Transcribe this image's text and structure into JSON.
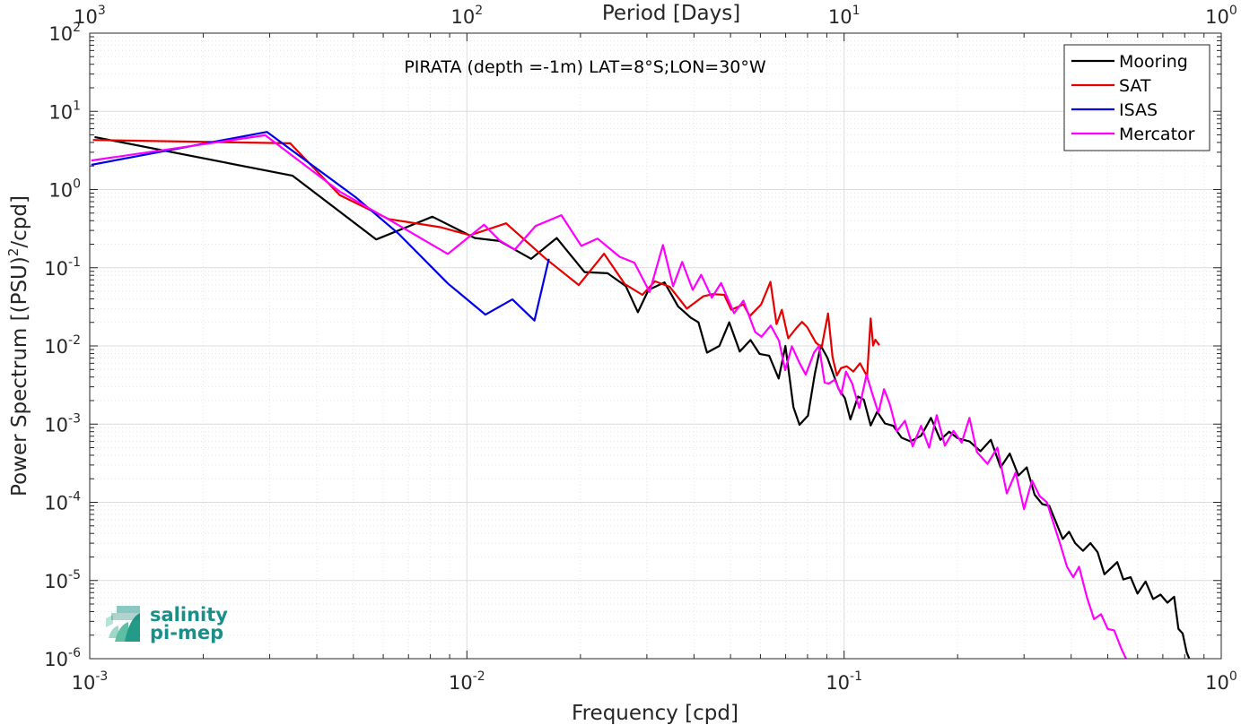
{
  "chart_data": {
    "type": "line",
    "title": "PIRATA (depth =-1m) LAT=8°S;LON=30°W",
    "xlabel": "Frequency [cpd]",
    "ylabel": "Power Spectrum [(PSU)",
    "ylabel_sup": "2",
    "ylabel_tail": "/cpd]",
    "top_xlabel": "Period [Days]",
    "x_scale": "log",
    "y_scale": "log",
    "xlim": [
      0.001,
      1
    ],
    "ylim": [
      1e-06,
      100
    ],
    "x_ticks": [
      {
        "value": 0.001,
        "base": "10",
        "exp": "-3"
      },
      {
        "value": 0.01,
        "base": "10",
        "exp": "-2"
      },
      {
        "value": 0.1,
        "base": "10",
        "exp": "-1"
      },
      {
        "value": 1,
        "base": "10",
        "exp": "0"
      }
    ],
    "top_ticks": [
      {
        "freq": 0.001,
        "base": "10",
        "exp": "3"
      },
      {
        "freq": 0.01,
        "base": "10",
        "exp": "2"
      },
      {
        "freq": 0.1,
        "base": "10",
        "exp": "1"
      },
      {
        "freq": 1,
        "base": "10",
        "exp": "0"
      }
    ],
    "y_ticks": [
      {
        "value": 100,
        "base": "10",
        "exp": "2"
      },
      {
        "value": 10,
        "base": "10",
        "exp": "1"
      },
      {
        "value": 1,
        "base": "10",
        "exp": "0"
      },
      {
        "value": 0.1,
        "base": "10",
        "exp": "-1"
      },
      {
        "value": 0.01,
        "base": "10",
        "exp": "-2"
      },
      {
        "value": 0.001,
        "base": "10",
        "exp": "-3"
      },
      {
        "value": 0.0001,
        "base": "10",
        "exp": "-4"
      },
      {
        "value": 1e-05,
        "base": "10",
        "exp": "-5"
      },
      {
        "value": 1e-06,
        "base": "10",
        "exp": "-6"
      }
    ],
    "grid": true,
    "legend_position": "top-right",
    "series": [
      {
        "name": "Mooring",
        "color": "#000000",
        "points": [
          [
            0.00103,
            4.7
          ],
          [
            0.00345,
            1.5
          ],
          [
            0.00575,
            0.23
          ],
          [
            0.0081,
            0.45
          ],
          [
            0.0105,
            0.24
          ],
          [
            0.0122,
            0.22
          ],
          [
            0.0148,
            0.13
          ],
          [
            0.0173,
            0.24
          ],
          [
            0.0205,
            0.088
          ],
          [
            0.0236,
            0.085
          ],
          [
            0.0264,
            0.058
          ],
          [
            0.0284,
            0.027
          ],
          [
            0.0303,
            0.052
          ],
          [
            0.0334,
            0.065
          ],
          [
            0.0363,
            0.032
          ],
          [
            0.0392,
            0.023
          ],
          [
            0.0411,
            0.02
          ],
          [
            0.0433,
            0.0082
          ],
          [
            0.0467,
            0.01
          ],
          [
            0.0496,
            0.02
          ],
          [
            0.0529,
            0.0085
          ],
          [
            0.0565,
            0.0119
          ],
          [
            0.0597,
            0.0079
          ],
          [
            0.0633,
            0.0075
          ],
          [
            0.0671,
            0.00383
          ],
          [
            0.0699,
            0.01
          ],
          [
            0.0734,
            0.00165
          ],
          [
            0.0762,
            0.00098
          ],
          [
            0.0802,
            0.00128
          ],
          [
            0.0836,
            0.00435
          ],
          [
            0.0867,
            0.0101
          ],
          [
            0.0903,
            0.0071
          ],
          [
            0.0937,
            0.00432
          ],
          [
            0.0967,
            0.00283
          ],
          [
            0.1005,
            0.00214
          ],
          [
            0.1039,
            0.00115
          ],
          [
            0.1089,
            0.00226
          ],
          [
            0.1128,
            0.00205
          ],
          [
            0.1176,
            0.00096
          ],
          [
            0.1224,
            0.00144
          ],
          [
            0.1283,
            0.00102
          ],
          [
            0.135,
            0.00095
          ],
          [
            0.142,
            0.00067
          ],
          [
            0.15,
            0.0006
          ],
          [
            0.16,
            0.00071
          ],
          [
            0.17,
            0.0012
          ],
          [
            0.18,
            0.00063
          ],
          [
            0.19,
            0.0008
          ],
          [
            0.2,
            0.00066
          ],
          [
            0.215,
            0.0006
          ],
          [
            0.23,
            0.00045
          ],
          [
            0.245,
            0.00063
          ],
          [
            0.26,
            0.00028
          ],
          [
            0.275,
            0.00042
          ],
          [
            0.29,
            0.00022
          ],
          [
            0.305,
            0.00028
          ],
          [
            0.32,
            0.000125
          ],
          [
            0.335,
            9.5e-05
          ],
          [
            0.35,
            9e-05
          ],
          [
            0.365,
            5.5e-05
          ],
          [
            0.38,
            3.4e-05
          ],
          [
            0.395,
            4.2e-05
          ],
          [
            0.41,
            3e-05
          ],
          [
            0.43,
            2.4e-05
          ],
          [
            0.45,
            3e-05
          ],
          [
            0.47,
            2.3e-05
          ],
          [
            0.49,
            1.2e-05
          ],
          [
            0.51,
            1.44e-05
          ],
          [
            0.53,
            1.72e-05
          ],
          [
            0.55,
            1.03e-05
          ],
          [
            0.575,
            1.1e-05
          ],
          [
            0.6,
            6.8e-06
          ],
          [
            0.63,
            9.7e-06
          ],
          [
            0.66,
            5.8e-06
          ],
          [
            0.69,
            6.6e-06
          ],
          [
            0.72,
            5.2e-06
          ],
          [
            0.75,
            6.2e-06
          ],
          [
            0.77,
            2.4e-06
          ],
          [
            0.79,
            2.1e-06
          ],
          [
            0.81,
            1.2e-06
          ],
          [
            0.83,
            9e-07
          ]
        ]
      },
      {
        "name": "SAT",
        "color": "#e60000",
        "points": [
          [
            0.00102,
            4.3
          ],
          [
            0.0034,
            3.9
          ],
          [
            0.0046,
            0.85
          ],
          [
            0.0062,
            0.42
          ],
          [
            0.0085,
            0.33
          ],
          [
            0.0102,
            0.26
          ],
          [
            0.0127,
            0.37
          ],
          [
            0.0162,
            0.13
          ],
          [
            0.0198,
            0.06
          ],
          [
            0.0231,
            0.151
          ],
          [
            0.0262,
            0.062
          ],
          [
            0.0292,
            0.045
          ],
          [
            0.0315,
            0.067
          ],
          [
            0.0345,
            0.057
          ],
          [
            0.0383,
            0.03
          ],
          [
            0.0423,
            0.043
          ],
          [
            0.0448,
            0.046
          ],
          [
            0.0481,
            0.045
          ],
          [
            0.0502,
            0.029
          ],
          [
            0.0541,
            0.034
          ],
          [
            0.0562,
            0.024
          ],
          [
            0.0603,
            0.034
          ],
          [
            0.0638,
            0.066
          ],
          [
            0.0662,
            0.019
          ],
          [
            0.0684,
            0.029
          ],
          [
            0.0711,
            0.0125
          ],
          [
            0.0744,
            0.0165
          ],
          [
            0.0773,
            0.0203
          ],
          [
            0.0798,
            0.0174
          ],
          [
            0.0842,
            0.011
          ],
          [
            0.0872,
            0.0096
          ],
          [
            0.0907,
            0.026
          ],
          [
            0.0932,
            0.0072
          ],
          [
            0.0957,
            0.0042
          ],
          [
            0.0981,
            0.0052
          ],
          [
            0.1016,
            0.0055
          ],
          [
            0.1058,
            0.0047
          ],
          [
            0.1102,
            0.006
          ],
          [
            0.1151,
            0.0041
          ],
          [
            0.1176,
            0.0225
          ],
          [
            0.1194,
            0.0101
          ],
          [
            0.121,
            0.012
          ],
          [
            0.124,
            0.0102
          ]
        ]
      },
      {
        "name": "ISAS",
        "color": "#0000e6",
        "points": [
          [
            0.00101,
            2.07
          ],
          [
            0.00295,
            5.45
          ],
          [
            0.0051,
            0.78
          ],
          [
            0.0066,
            0.27
          ],
          [
            0.0089,
            0.063
          ],
          [
            0.0112,
            0.0251
          ],
          [
            0.0132,
            0.0393
          ],
          [
            0.0151,
            0.0211
          ],
          [
            0.0165,
            0.13
          ]
        ]
      },
      {
        "name": "Mercator",
        "color": "#ff00ff",
        "points": [
          [
            0.00101,
            2.35
          ],
          [
            0.00292,
            4.95
          ],
          [
            0.0046,
            0.94
          ],
          [
            0.0064,
            0.38
          ],
          [
            0.0089,
            0.15
          ],
          [
            0.0111,
            0.355
          ],
          [
            0.0122,
            0.224
          ],
          [
            0.0134,
            0.171
          ],
          [
            0.0152,
            0.342
          ],
          [
            0.0178,
            0.47
          ],
          [
            0.0201,
            0.19
          ],
          [
            0.0222,
            0.236
          ],
          [
            0.0254,
            0.138
          ],
          [
            0.0278,
            0.116
          ],
          [
            0.0305,
            0.049
          ],
          [
            0.0331,
            0.195
          ],
          [
            0.0352,
            0.058
          ],
          [
            0.0372,
            0.119
          ],
          [
            0.0397,
            0.052
          ],
          [
            0.0418,
            0.081
          ],
          [
            0.0446,
            0.0415
          ],
          [
            0.0472,
            0.0637
          ],
          [
            0.0511,
            0.0262
          ],
          [
            0.0541,
            0.0379
          ],
          [
            0.0581,
            0.0151
          ],
          [
            0.0604,
            0.0131
          ],
          [
            0.0639,
            0.0182
          ],
          [
            0.0672,
            0.0117
          ],
          [
            0.0698,
            0.0049
          ],
          [
            0.0727,
            0.0099
          ],
          [
            0.0761,
            0.0061
          ],
          [
            0.0791,
            0.0043
          ],
          [
            0.0832,
            0.0082
          ],
          [
            0.0858,
            0.01
          ],
          [
            0.0888,
            0.0034
          ],
          [
            0.0911,
            0.0033
          ],
          [
            0.0945,
            0.0037
          ],
          [
            0.0982,
            0.0024
          ],
          [
            0.1012,
            0.0047
          ],
          [
            0.1051,
            0.0033
          ],
          [
            0.1097,
            0.0016
          ],
          [
            0.1147,
            0.0043
          ],
          [
            0.1189,
            0.0024
          ],
          [
            0.1233,
            0.0014
          ],
          [
            0.1276,
            0.0028
          ],
          [
            0.1322,
            0.0018
          ],
          [
            0.138,
            0.00081
          ],
          [
            0.145,
            0.0011
          ],
          [
            0.152,
            0.00052
          ],
          [
            0.16,
            0.00095
          ],
          [
            0.168,
            0.0005
          ],
          [
            0.176,
            0.0013
          ],
          [
            0.185,
            0.00053
          ],
          [
            0.195,
            0.00082
          ],
          [
            0.205,
            0.00058
          ],
          [
            0.215,
            0.0012
          ],
          [
            0.225,
            0.00044
          ],
          [
            0.24,
            0.00031
          ],
          [
            0.255,
            0.0005
          ],
          [
            0.27,
            0.00013
          ],
          [
            0.285,
            0.00024
          ],
          [
            0.3,
            8.2e-05
          ],
          [
            0.315,
            0.00019
          ],
          [
            0.33,
            0.00012
          ],
          [
            0.345,
            0.0001
          ],
          [
            0.36,
            5.2e-05
          ],
          [
            0.375,
            2.8e-05
          ],
          [
            0.39,
            1.5e-05
          ],
          [
            0.405,
            1.1e-05
          ],
          [
            0.42,
            1.5e-05
          ],
          [
            0.44,
            6.2e-06
          ],
          [
            0.46,
            3.2e-06
          ],
          [
            0.48,
            3.7e-06
          ],
          [
            0.5,
            2.4e-06
          ],
          [
            0.52,
            2.3e-06
          ],
          [
            0.545,
            1.3e-06
          ],
          [
            0.565,
            9e-07
          ],
          [
            0.58,
            6e-07
          ]
        ]
      }
    ]
  },
  "logo": {
    "line1": "salinity",
    "line2": "pi-mep",
    "color": "#1a8f8a"
  }
}
